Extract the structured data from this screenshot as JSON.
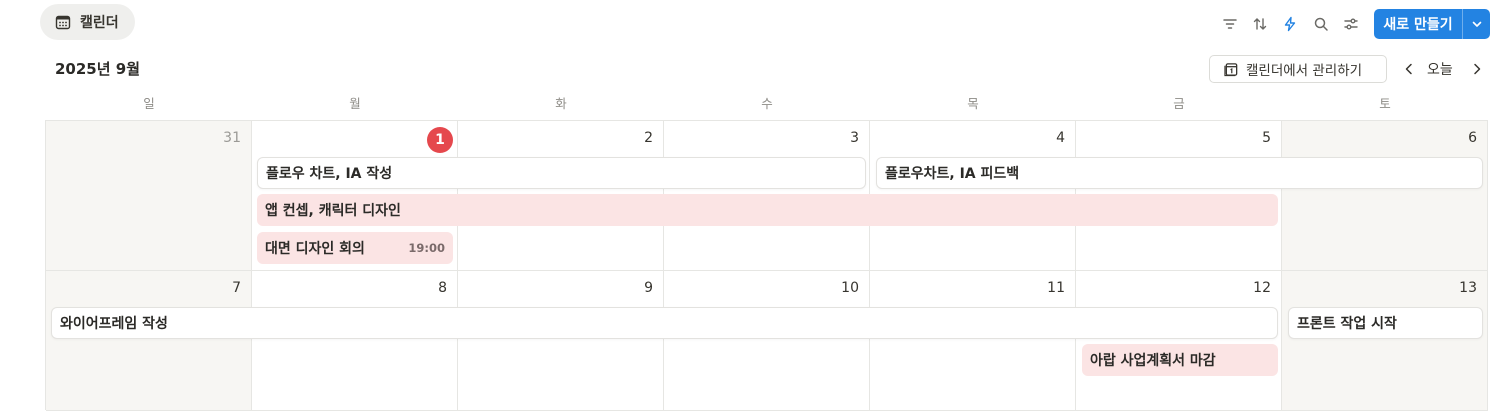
{
  "view": {
    "label": "캘린더",
    "icon": "calendar-icon"
  },
  "toolbar": {
    "icons": [
      "filter-icon",
      "sort-icon",
      "lightning-icon",
      "search-icon",
      "settings-sliders-icon"
    ],
    "new_label": "새로 만들기",
    "accent": "#2383e2"
  },
  "month_title": "2025년 9월",
  "manage_label": "캘린더에서 관리하기",
  "today_label": "오늘",
  "weekdays": [
    "일",
    "월",
    "화",
    "수",
    "목",
    "금",
    "토"
  ],
  "weeks": [
    {
      "days": [
        "31",
        "1",
        "2",
        "3",
        "4",
        "5",
        "6"
      ]
    },
    {
      "days": [
        "7",
        "8",
        "9",
        "10",
        "11",
        "12",
        "13"
      ]
    }
  ],
  "today_color": "#e5484d",
  "events": [
    {
      "title": "플로우 차트, IA 작성",
      "time": "",
      "style": "white"
    },
    {
      "title": "플로우차트, IA 피드백",
      "time": "",
      "style": "white"
    },
    {
      "title": "앱 컨셉, 캐릭터 디자인",
      "time": "",
      "style": "pink"
    },
    {
      "title": "대면 디자인 회의",
      "time": "19:00",
      "style": "pink"
    },
    {
      "title": "와이어프레임 작성",
      "time": "",
      "style": "white"
    },
    {
      "title": "프론트 작업 시작",
      "time": "",
      "style": "white"
    },
    {
      "title": "아랍 사업계획서 마감",
      "time": "",
      "style": "pink"
    }
  ],
  "event_colors": {
    "pink": "#fbe4e4",
    "white": "#ffffff"
  }
}
